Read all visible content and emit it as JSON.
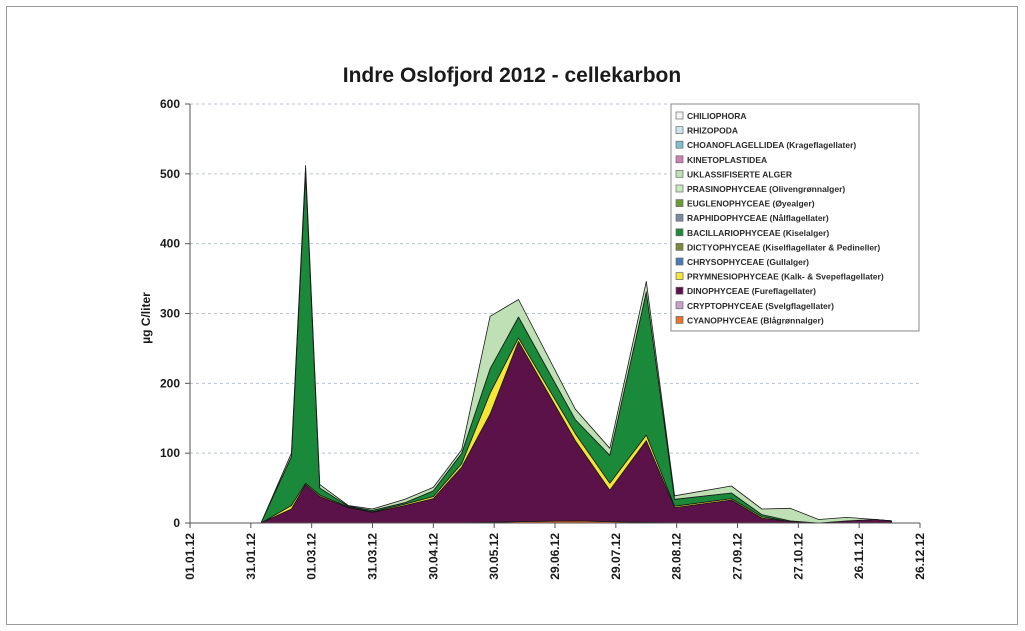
{
  "chart_data": {
    "type": "area",
    "stacked": true,
    "title": "Indre Oslofjord 2012 - cellekarbon",
    "ylabel": "µg C/liter",
    "xlabel": "",
    "ylim": [
      0,
      600
    ],
    "yticks": [
      "0",
      "100",
      "200",
      "300",
      "400",
      "500",
      "600"
    ],
    "xlim": [
      "2012-01-01",
      "2012-12-26"
    ],
    "xticks": [
      "01.01.12",
      "31.01.12",
      "01.03.12",
      "31.03.12",
      "30.04.12",
      "30.05.12",
      "29.06.12",
      "29.07.12",
      "28.08.12",
      "27.09.12",
      "27.10.12",
      "26.11.12",
      "26.12.12"
    ],
    "grid": "horizontal-dashed",
    "legend_position": "top-right",
    "x": [
      "2012-01-24",
      "2012-02-05",
      "2012-02-20",
      "2012-02-27",
      "2012-03-05",
      "2012-03-19",
      "2012-03-31",
      "2012-04-16",
      "2012-04-30",
      "2012-05-14",
      "2012-05-28",
      "2012-06-11",
      "2012-07-09",
      "2012-07-26",
      "2012-08-13",
      "2012-08-27",
      "2012-09-24",
      "2012-10-09",
      "2012-10-23",
      "2012-11-06",
      "2012-11-20",
      "2012-12-04",
      "2012-12-12"
    ],
    "series": [
      {
        "name": "CYANOPHYCEAE (Blågrønnalger)",
        "color": "#e8742c",
        "values": [
          0,
          0,
          0,
          0,
          0,
          0,
          0,
          0,
          0,
          0,
          1,
          2,
          3,
          2,
          1,
          0,
          0,
          0,
          0,
          0,
          0,
          0,
          0
        ]
      },
      {
        "name": "CRYPTOPHYCEAE (Svelgflagellater)",
        "color": "#c8a2c8",
        "values": [
          0,
          0,
          0,
          0,
          0,
          0,
          0,
          0,
          0,
          0,
          0,
          0,
          0,
          0,
          0,
          0,
          0,
          0,
          0,
          0,
          0,
          0,
          0
        ]
      },
      {
        "name": "DINOPHYCEAE (Fureflagellater)",
        "color": "#5b1248",
        "values": [
          0,
          0,
          20,
          55,
          38,
          22,
          15,
          25,
          35,
          80,
          155,
          258,
          115,
          45,
          117,
          22,
          33,
          7,
          2,
          0,
          3,
          5,
          3
        ]
      },
      {
        "name": "PRYMNESIOPHYCEAE (Kalk- & Svepeflagellater)",
        "color": "#f5e636",
        "values": [
          0,
          0,
          5,
          2,
          2,
          1,
          1,
          2,
          3,
          5,
          30,
          5,
          10,
          10,
          8,
          2,
          2,
          2,
          0,
          0,
          0,
          0,
          0
        ]
      },
      {
        "name": "CHRYSOPHYCEAE (Gullalger)",
        "color": "#4a7bb7",
        "values": [
          0,
          0,
          0,
          0,
          0,
          0,
          0,
          0,
          0,
          0,
          0,
          0,
          0,
          0,
          0,
          0,
          0,
          0,
          0,
          0,
          0,
          0,
          0
        ]
      },
      {
        "name": "DICTYOPHYCEAE (Kiselflagellater & Pedineller)",
        "color": "#7a8a3a",
        "values": [
          0,
          0,
          0,
          0,
          0,
          0,
          0,
          0,
          0,
          0,
          0,
          0,
          0,
          0,
          0,
          0,
          0,
          0,
          0,
          0,
          0,
          0,
          0
        ]
      },
      {
        "name": "BACILLARIOPHYCEAE (Kiselalger)",
        "color": "#1a8a3a",
        "values": [
          0,
          0,
          70,
          445,
          10,
          1,
          2,
          2,
          8,
          15,
          35,
          30,
          20,
          40,
          205,
          10,
          8,
          3,
          1,
          0,
          0,
          0,
          0
        ]
      },
      {
        "name": "RAPHIDOPHYCEAE (Nålflagellater)",
        "color": "#7a8aa0",
        "values": [
          0,
          0,
          0,
          0,
          0,
          0,
          0,
          0,
          0,
          0,
          0,
          0,
          0,
          0,
          0,
          0,
          0,
          0,
          0,
          0,
          0,
          0,
          0
        ]
      },
      {
        "name": "EUGLENOPHYCEAE (Øyealger)",
        "color": "#6a9a30",
        "values": [
          0,
          0,
          0,
          0,
          0,
          0,
          0,
          0,
          0,
          0,
          0,
          0,
          0,
          0,
          0,
          0,
          0,
          0,
          0,
          0,
          0,
          0,
          0
        ]
      },
      {
        "name": "PRASINOPHYCEAE (Olivengrønnalger)",
        "color": "#c8e8c0",
        "values": [
          0,
          0,
          0,
          0,
          0,
          0,
          0,
          0,
          0,
          0,
          0,
          0,
          0,
          0,
          0,
          0,
          0,
          0,
          0,
          0,
          0,
          0,
          0
        ]
      },
      {
        "name": "UKLASSIFISERTE ALGER",
        "color": "#bfe0b4",
        "values": [
          0,
          0,
          5,
          10,
          5,
          1,
          2,
          5,
          5,
          5,
          75,
          25,
          15,
          10,
          15,
          5,
          10,
          8,
          18,
          5,
          5,
          0,
          0
        ]
      },
      {
        "name": "KINETOPLASTIDEA",
        "color": "#d080b0",
        "values": [
          0,
          0,
          0,
          0,
          0,
          0,
          0,
          0,
          0,
          0,
          0,
          0,
          0,
          0,
          0,
          0,
          0,
          0,
          0,
          0,
          0,
          0,
          0
        ]
      },
      {
        "name": "CHOANOFLAGELLIDEA (Krageflagellater)",
        "color": "#80c0d0",
        "values": [
          0,
          0,
          0,
          0,
          0,
          0,
          0,
          0,
          0,
          0,
          0,
          0,
          0,
          0,
          0,
          0,
          0,
          0,
          0,
          0,
          0,
          0,
          0
        ]
      },
      {
        "name": "RHIZOPODA",
        "color": "#d0e4f0",
        "values": [
          0,
          0,
          0,
          0,
          0,
          0,
          0,
          0,
          0,
          0,
          0,
          0,
          0,
          0,
          0,
          0,
          0,
          0,
          0,
          0,
          0,
          0,
          0
        ]
      },
      {
        "name": "CHILIOPHORA",
        "color": "#f4f4f4",
        "values": [
          0,
          0,
          0,
          0,
          0,
          0,
          0,
          0,
          0,
          0,
          0,
          0,
          0,
          0,
          0,
          0,
          0,
          0,
          0,
          0,
          0,
          0,
          0
        ]
      }
    ]
  }
}
